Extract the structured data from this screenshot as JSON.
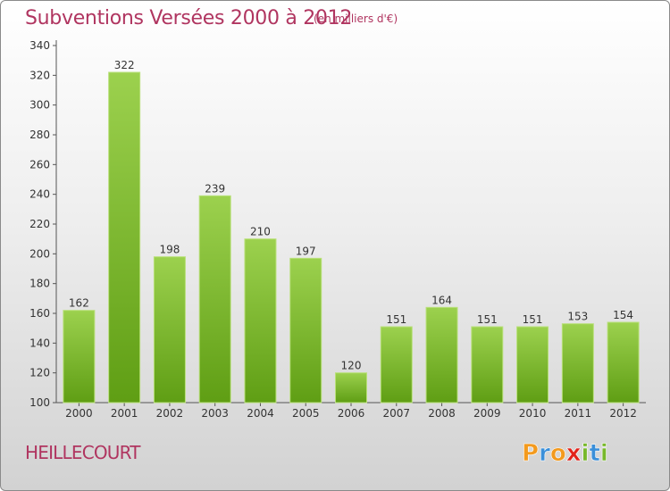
{
  "header": {
    "title": "Subventions Versées 2000 à 2012",
    "unit_note": "(en milliers d'€)"
  },
  "footer": {
    "town": "HEILLECOURT",
    "logo_text": "Proxiti"
  },
  "colors": {
    "title": "#b03560",
    "bar_top": "#9cd14e",
    "bar_bottom": "#5f9e14",
    "logo_letters": [
      "#f39a1e",
      "#3a8fd9",
      "#f39a1e",
      "#e2231a",
      "#77b82a",
      "#3a8fd9",
      "#77b82a"
    ]
  },
  "chart_data": {
    "type": "bar",
    "title": "Subventions Versées 2000 à 2012",
    "subtitle": "(en milliers d'€)",
    "categories": [
      "2000",
      "2001",
      "2002",
      "2003",
      "2004",
      "2005",
      "2006",
      "2007",
      "2008",
      "2009",
      "2010",
      "2011",
      "2012"
    ],
    "values": [
      162,
      322,
      198,
      239,
      210,
      197,
      120,
      151,
      164,
      151,
      151,
      153,
      154
    ],
    "ylim": [
      100,
      340
    ],
    "yticks": [
      100,
      120,
      140,
      160,
      180,
      200,
      220,
      240,
      260,
      280,
      300,
      320,
      340
    ],
    "xlabel": "",
    "ylabel": "",
    "grid": false,
    "legend": "none"
  }
}
